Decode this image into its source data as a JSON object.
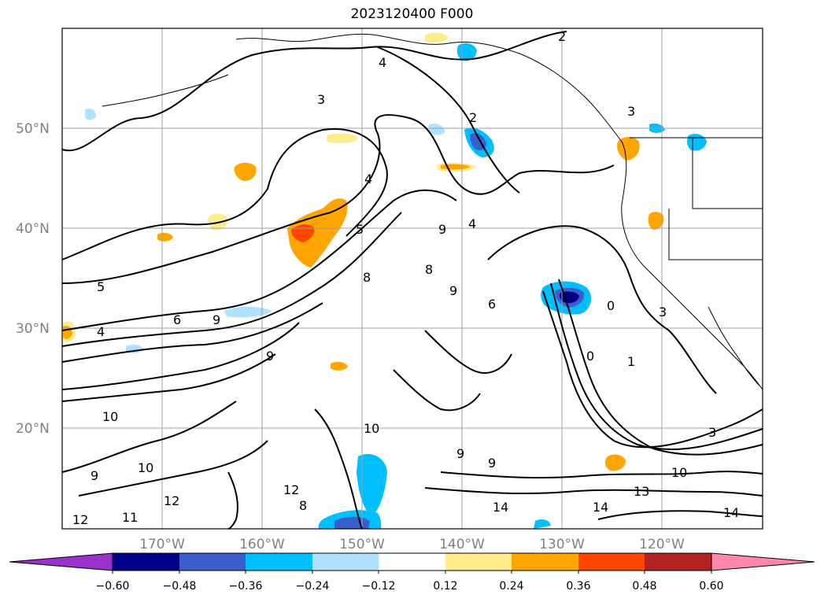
{
  "title": "2023120400 F000",
  "lat_labels": [
    "50°N",
    "40°N",
    "30°N",
    "20°N"
  ],
  "lon_labels": [
    "170°W",
    "160°W",
    "150°W",
    "140°W",
    "130°W",
    "120°W"
  ],
  "colorbar": {
    "ticks": [
      "−0.60",
      "−0.48",
      "−0.36",
      "−0.24",
      "−0.12",
      "0.12",
      "0.24",
      "0.36",
      "0.48",
      "0.60"
    ],
    "colors": [
      "#9932CC",
      "#00008B",
      "#3A5FCD",
      "#00BFFF",
      "#B0E2FF",
      "#FFFFFF",
      "#FFEC8B",
      "#FFA500",
      "#FF4500",
      "#B22222",
      "#FF88AA"
    ]
  },
  "contour_labels": [
    "2",
    "2",
    "3",
    "3",
    "4",
    "4",
    "4",
    "5",
    "5",
    "9",
    "9",
    "9",
    "9",
    "8",
    "8",
    "6",
    "4",
    "3",
    "1",
    "0",
    "0",
    "3",
    "10",
    "9",
    "8",
    "10",
    "10",
    "12",
    "12",
    "12",
    "11",
    "14",
    "14",
    "14",
    "13",
    "10",
    "6",
    "9",
    "9"
  ]
}
